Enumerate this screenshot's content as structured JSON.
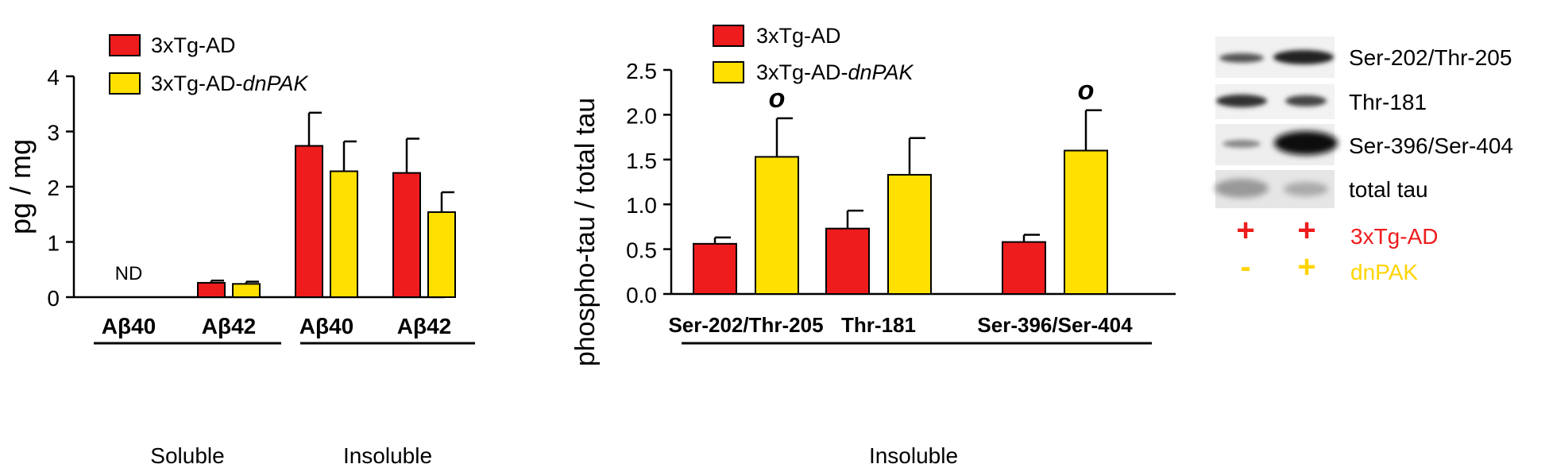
{
  "colors": {
    "red": "#ee1c1c",
    "yellow": "#ffe000",
    "label_red": "#ee1c1c",
    "label_yellow": "#ffd400"
  },
  "chart_data": [
    {
      "type": "bar",
      "ylabel": "pg / mg",
      "ylim": [
        0,
        4
      ],
      "yticks": [
        "0",
        "1",
        "2",
        "3",
        "4"
      ],
      "categories": [
        "Aβ40",
        "Aβ42",
        "Aβ40",
        "Aβ42"
      ],
      "groups": [
        {
          "label": "Soluble",
          "categories": [
            0,
            1
          ]
        },
        {
          "label": "Insoluble",
          "categories": [
            2,
            3
          ]
        }
      ],
      "series": [
        {
          "name": "3xTg-AD",
          "values": [
            0,
            0.26,
            2.74,
            2.25
          ],
          "errors": [
            0,
            0.04,
            0.6,
            0.62
          ]
        },
        {
          "name": "3xTg-AD-dnPAK",
          "values": [
            0,
            0.24,
            2.28,
            1.54
          ],
          "errors": [
            0,
            0.04,
            0.54,
            0.36
          ]
        }
      ],
      "annotations": [
        {
          "category": 0,
          "text": "ND"
        }
      ],
      "legend": [
        {
          "prefix": "3xTg-AD",
          "italic": ""
        },
        {
          "prefix": "3xTg-AD-",
          "italic": "dnPAK"
        }
      ]
    },
    {
      "type": "bar",
      "ylabel": "phospho-tau / total tau",
      "ylim": [
        0,
        2.5
      ],
      "yticks": [
        "0.0",
        "0.5",
        "1.0",
        "1.5",
        "2.0",
        "2.5"
      ],
      "categories": [
        "Ser-202/Thr-205",
        "Thr-181",
        "Ser-396/Ser-404"
      ],
      "group_label": "Insoluble",
      "series": [
        {
          "name": "3xTg-AD",
          "values": [
            0.56,
            0.73,
            0.58
          ],
          "errors": [
            0.07,
            0.2,
            0.08
          ]
        },
        {
          "name": "3xTg-AD-dnPAK",
          "values": [
            1.53,
            1.33,
            1.6
          ],
          "errors": [
            0.43,
            0.41,
            0.45
          ]
        }
      ],
      "significance": [
        {
          "category": 0,
          "text": "o"
        },
        {
          "category": 2,
          "text": "o"
        }
      ],
      "legend": [
        {
          "prefix": "3xTg-AD",
          "italic": ""
        },
        {
          "prefix": "3xTg-AD-",
          "italic": "dnPAK"
        }
      ]
    }
  ],
  "blot": {
    "bands": [
      "Ser-202/Thr-205",
      "Thr-181",
      "Ser-396/Ser-404",
      "total tau"
    ],
    "rows": [
      {
        "signs": [
          "+",
          "+"
        ],
        "label": "3xTg-AD"
      },
      {
        "signs": [
          "-",
          "+"
        ],
        "label": "dnPAK"
      }
    ]
  }
}
